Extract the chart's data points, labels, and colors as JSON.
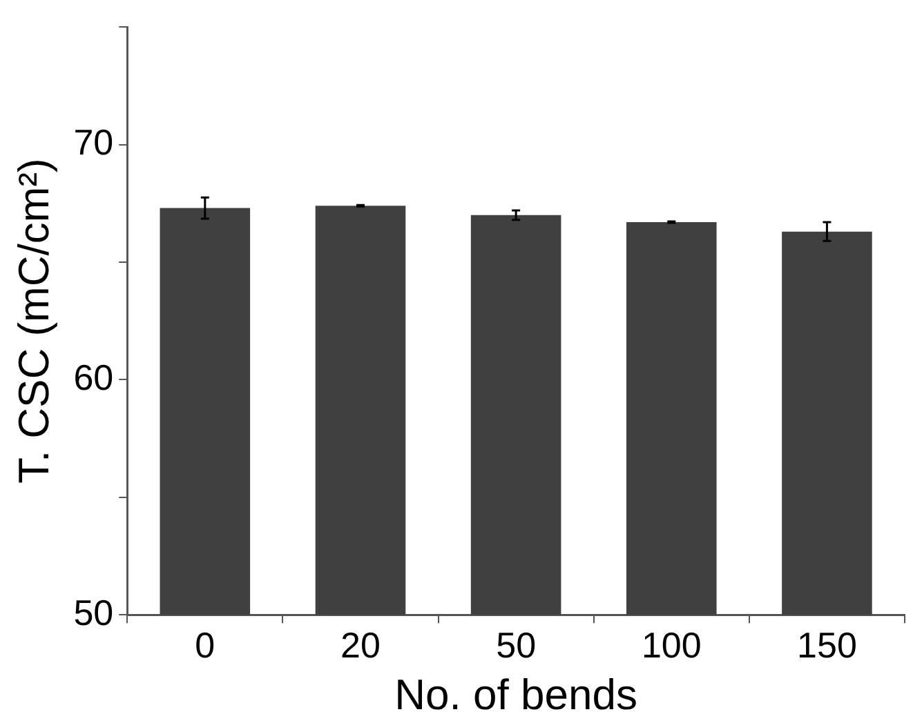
{
  "chart_data": {
    "type": "bar",
    "xlabel": "No. of bends",
    "ylabel": "T. CSC (mC/cm²)",
    "categories": [
      "0",
      "20",
      "50",
      "100",
      "150"
    ],
    "values": [
      67.3,
      67.4,
      67.0,
      66.7,
      66.3
    ],
    "errors": [
      0.45,
      0.03,
      0.2,
      0.03,
      0.4
    ],
    "color": "#404040",
    "ylim": [
      50,
      75
    ],
    "yticks": [
      50,
      {
        "value": 55,
        "label": null
      },
      60,
      {
        "value": 65,
        "label": null
      },
      70,
      {
        "value": 75,
        "label": null
      }
    ],
    "grid": false,
    "legend": false
  }
}
